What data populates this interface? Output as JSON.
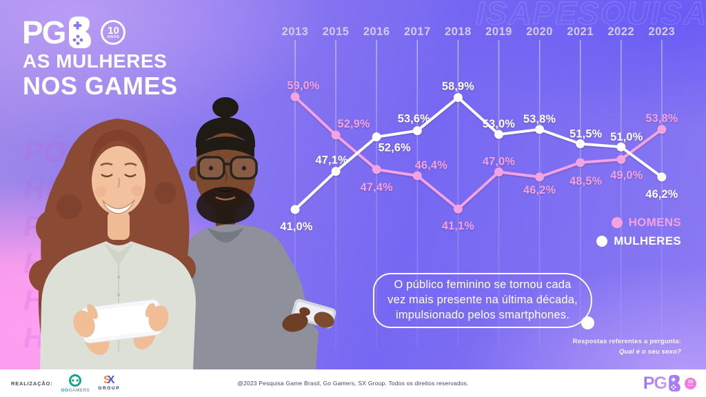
{
  "header": {
    "logo": {
      "pg": "PG",
      "badge_number": "10",
      "badge_label": "ANOS"
    },
    "title_line1": "AS MULHERES",
    "title_line2": "NOS GAMES"
  },
  "watermarks": {
    "top_right": "ISAPESQUISA",
    "left_fragments": [
      "PO",
      "HO",
      "P",
      "H",
      "H",
      "HO"
    ]
  },
  "chart_data": {
    "type": "line",
    "x": [
      "2013",
      "2015",
      "2016",
      "2017",
      "2018",
      "2019",
      "2020",
      "2021",
      "2022",
      "2023"
    ],
    "series": [
      {
        "name": "HOMENS",
        "color": "#F4A3E2",
        "values": [
          59.0,
          52.9,
          47.4,
          46.4,
          41.1,
          47.0,
          46.2,
          48.5,
          49.0,
          53.8
        ],
        "labels": [
          "59,0%",
          "52,9%",
          "47,4%",
          "46,4%",
          "41,1%",
          "47,0%",
          "46,2%",
          "48,5%",
          "49,0%",
          "53,8%"
        ]
      },
      {
        "name": "MULHERES",
        "color": "#FFFFFF",
        "values": [
          41.0,
          47.1,
          52.6,
          53.6,
          58.9,
          53.0,
          53.8,
          51.5,
          51.0,
          46.2
        ],
        "labels": [
          "41,0%",
          "47,1%",
          "52,6%",
          "53,6%",
          "58,9%",
          "53,0%",
          "53,8%",
          "51,5%",
          "51,0%",
          "46,2%"
        ]
      }
    ],
    "title": "AS MULHERES NOS GAMES",
    "xlabel": "",
    "ylabel": "",
    "ylim": [
      38,
      62
    ],
    "grid": "vertical",
    "legend_position": "right"
  },
  "callout": {
    "line1": "O público feminino se tornou cada",
    "line2": "vez mais presente na última década,",
    "line3": "impulsionado pelos smartphones."
  },
  "footnote": {
    "line1": "Respostas referentes a pergunta:",
    "line2": "Qual é o seu sexo?"
  },
  "footer": {
    "realization_label": "REALIZAÇÃO:",
    "gogamers": {
      "go": "GO",
      "gamers": "GAMERS"
    },
    "sx": {
      "s": "S",
      "x": "X",
      "group": "GROUP"
    },
    "copyright": "@2023 Pesquisa Game Brasil, Go Gamers, SX Group. Todos os direitos reservados.",
    "logo": {
      "pg": "PG",
      "badge_number": "10",
      "badge_label": "anos"
    }
  },
  "colors": {
    "homens_pink": "#F4A3E2",
    "mulheres_white": "#FFFFFF",
    "year_label": "#D6CBF7",
    "background_purple": "#7668F2",
    "background_pink": "#F79CEC"
  }
}
